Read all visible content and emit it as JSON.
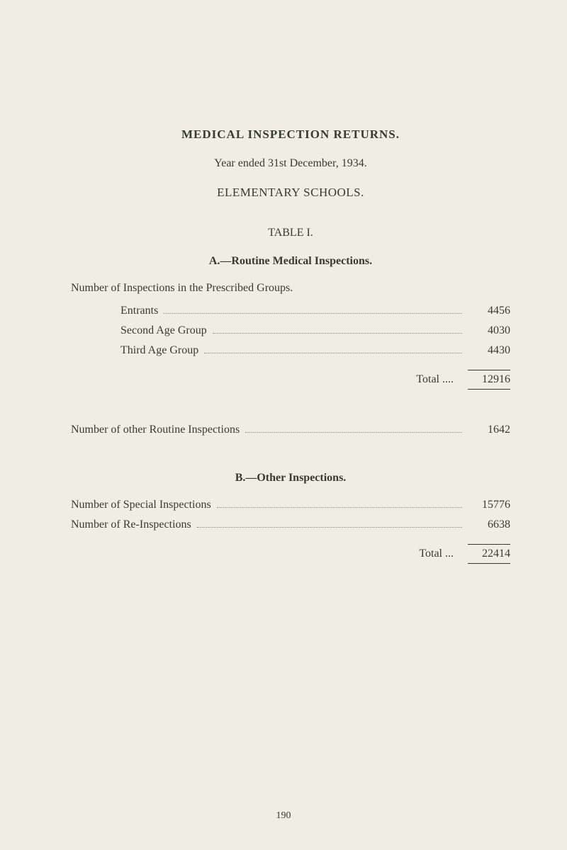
{
  "background_color": "#f0ede3",
  "text_color": "#3a3a35",
  "base_fontsize": 16,
  "heading_fontsize": 17,
  "main_heading": "MEDICAL INSPECTION RETURNS.",
  "subtitle": "Year ended 31st December, 1934.",
  "school_type": "ELEMENTARY SCHOOLS.",
  "table_label": "TABLE I.",
  "section_a": {
    "heading": "A.—Routine Medical Inspections.",
    "intro": "Number of Inspections in the Prescribed Groups.",
    "items": [
      {
        "label": "Entrants",
        "value": "4456"
      },
      {
        "label": "Second Age Group",
        "value": "4030"
      },
      {
        "label": "Third Age Group",
        "value": "4430"
      }
    ],
    "total_label": "Total ....",
    "total_value": "12916",
    "other_routine": {
      "label": "Number of other Routine Inspections",
      "value": "1642"
    }
  },
  "section_b": {
    "heading": "B.—Other Inspections.",
    "items": [
      {
        "label": "Number of Special Inspections",
        "value": "15776"
      },
      {
        "label": "Number of Re-Inspections",
        "value": "6638"
      }
    ],
    "total_label": "Total ...",
    "total_value": "22414"
  },
  "page_number": "190"
}
